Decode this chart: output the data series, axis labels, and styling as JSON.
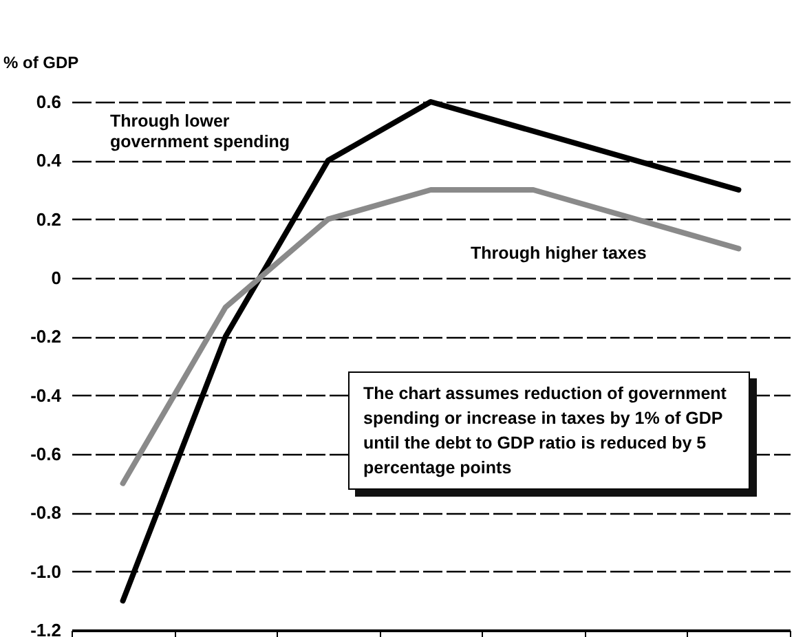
{
  "chart_data": {
    "type": "line",
    "ylabel": "% of GDP",
    "categories": [
      null,
      null,
      null,
      null,
      null,
      null,
      null
    ],
    "series": [
      {
        "name": "Through lower government spending",
        "color": "#000000",
        "values": [
          -1.1,
          -0.2,
          0.4,
          0.6,
          0.5,
          0.4,
          0.3
        ]
      },
      {
        "name": "Through higher taxes",
        "color": "#8a8a8a",
        "values": [
          -0.7,
          -0.1,
          0.2,
          0.3,
          0.3,
          0.2,
          0.1
        ]
      }
    ],
    "ylim": [
      -1.2,
      0.6
    ],
    "yticks": [
      0.6,
      0.4,
      0.2,
      0,
      -0.2,
      -0.4,
      -0.6,
      -0.8,
      {
        "value": -1,
        "label": "-1.0"
      },
      -1.2
    ],
    "grid": "y",
    "legend": false,
    "marker": "none",
    "line_style": "solid",
    "annotations": [
      "The chart assumes reduction of government spending or increase in taxes by 1% of GDP until the debt to GDP ratio is reduced by 5 percentage points"
    ]
  }
}
